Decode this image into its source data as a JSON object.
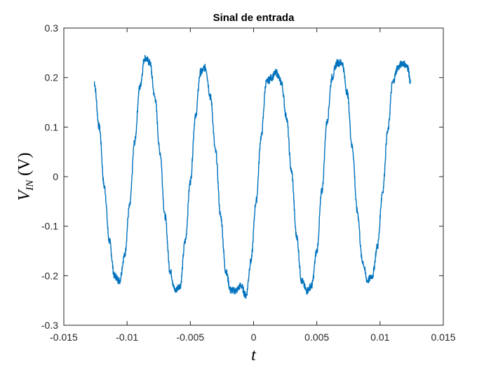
{
  "chart_data": {
    "type": "line",
    "title": "Sinal de entrada",
    "xlabel": "t",
    "ylabel_main": "V",
    "ylabel_sub": "IN",
    "ylabel_unit": "(V)",
    "xlim": [
      -0.015,
      0.015
    ],
    "ylim": [
      -0.3,
      0.3
    ],
    "xticks": [
      -0.015,
      -0.01,
      -0.005,
      0,
      0.005,
      0.01,
      0.015
    ],
    "xtick_labels": [
      "-0.015",
      "-0.01",
      "-0.005",
      "0",
      "0.005",
      "0.01",
      "0.015"
    ],
    "yticks": [
      -0.3,
      -0.2,
      -0.1,
      0,
      0.1,
      0.2,
      0.3
    ],
    "ytick_labels": [
      "-0.3",
      "-0.2",
      "-0.1",
      "0",
      "0.1",
      "0.2",
      "0.3"
    ],
    "grid": false,
    "box": true,
    "series": [
      {
        "color": "#0072BD",
        "x": [
          -0.0126,
          -0.0122,
          -0.0118,
          -0.0114,
          -0.011,
          -0.0106,
          -0.0102,
          -0.0098,
          -0.0094,
          -0.009,
          -0.0086,
          -0.0082,
          -0.0078,
          -0.0074,
          -0.007,
          -0.0066,
          -0.0062,
          -0.0058,
          -0.0054,
          -0.005,
          -0.0046,
          -0.0042,
          -0.0038,
          -0.0034,
          -0.003,
          -0.0026,
          -0.0022,
          -0.0018,
          -0.0014,
          -0.001,
          -0.0006,
          -0.0002,
          0.0002,
          0.0006,
          0.001,
          0.0014,
          0.0018,
          0.0022,
          0.0026,
          0.003,
          0.0034,
          0.0038,
          0.0042,
          0.0046,
          0.005,
          0.0054,
          0.0058,
          0.0062,
          0.0066,
          0.007,
          0.0074,
          0.0078,
          0.0082,
          0.0086,
          0.009,
          0.0094,
          0.0098,
          0.0102,
          0.0106,
          0.011,
          0.0114,
          0.0118,
          0.0122,
          0.0124
        ],
        "y": [
          0.19,
          0.1,
          -0.02,
          -0.13,
          -0.2,
          -0.21,
          -0.16,
          -0.06,
          0.07,
          0.18,
          0.24,
          0.23,
          0.16,
          0.05,
          -0.08,
          -0.19,
          -0.23,
          -0.22,
          -0.13,
          -0.01,
          0.12,
          0.21,
          0.22,
          0.16,
          0.05,
          -0.08,
          -0.19,
          -0.23,
          -0.23,
          -0.22,
          -0.24,
          -0.17,
          -0.05,
          0.08,
          0.19,
          0.2,
          0.21,
          0.19,
          0.12,
          0.01,
          -0.12,
          -0.21,
          -0.23,
          -0.22,
          -0.15,
          -0.03,
          0.11,
          0.2,
          0.23,
          0.23,
          0.17,
          0.06,
          -0.07,
          -0.17,
          -0.21,
          -0.2,
          -0.14,
          -0.03,
          0.09,
          0.19,
          0.22,
          0.23,
          0.22,
          0.19
        ]
      }
    ]
  }
}
